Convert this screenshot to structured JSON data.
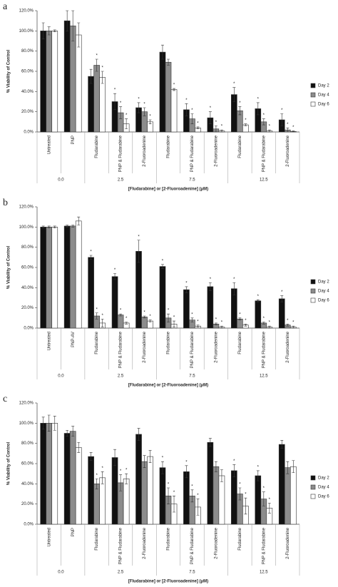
{
  "chart_data": [
    {
      "type": "bar",
      "panel": "a",
      "y_label": "% Viability of Control",
      "x_label": "[Fludarabine]  or [2-Fluoroadenine] (μM)",
      "categories": [
        "Untreated",
        "PNP",
        "Fludarabine",
        "PNP & Fludarabine",
        "2-Fluoroadenine",
        "Fludarabine",
        "PNP & Fludarabine",
        "2-Fluoroadenine",
        "Fludarabine",
        "PNP & Fludarabine",
        "2-Fluoroadenine"
      ],
      "groups": [
        {
          "label": "0.0",
          "count": 2
        },
        {
          "label": "2.5",
          "count": 3
        },
        {
          "label": "7.5",
          "count": 3
        },
        {
          "label": "12.5",
          "count": 3
        }
      ],
      "ylim": [
        0,
        120
      ],
      "yticks": [
        {
          "value": 0,
          "label": "0.0%"
        },
        {
          "value": 20,
          "label": "20.0%"
        },
        {
          "value": 40,
          "label": "40.0%"
        },
        {
          "value": 60,
          "label": "60.0%"
        },
        {
          "value": 80,
          "label": "80.0%"
        },
        {
          "value": 100,
          "label": "100.0%"
        },
        {
          "value": 120,
          "label": "120.0%"
        }
      ],
      "series": [
        {
          "name": "Day 2",
          "color": "#111111",
          "values": [
            100,
            110,
            55,
            30,
            24,
            79,
            22,
            14,
            37,
            23,
            12
          ],
          "errors": [
            8,
            10,
            7,
            8,
            5,
            7,
            6,
            6,
            7,
            6,
            6
          ],
          "annotations": [
            null,
            null,
            null,
            "*",
            "*",
            null,
            "*",
            "*",
            "*",
            "*",
            "*"
          ]
        },
        {
          "name": "Day 4",
          "color": "#8c8c8c",
          "values": [
            100,
            105,
            66,
            19,
            20,
            69,
            13,
            3,
            21,
            10,
            2
          ],
          "errors": [
            4,
            15,
            6,
            6,
            4,
            3,
            5,
            3,
            4,
            3,
            2
          ],
          "annotations": [
            null,
            null,
            "*",
            "*",
            "*",
            null,
            "*",
            "*",
            "*",
            "*",
            "*"
          ]
        },
        {
          "name": "Day 6",
          "color": "#ffffff",
          "values": [
            100,
            96,
            54,
            8,
            10,
            42,
            4,
            1,
            7,
            1,
            0.5
          ],
          "errors": [
            1,
            12,
            6,
            5,
            2,
            1,
            1,
            1,
            1,
            1,
            0.5
          ],
          "annotations": [
            null,
            null,
            "*",
            "*",
            "*",
            "*",
            "*",
            "*",
            "*",
            "*",
            "*"
          ]
        }
      ]
    },
    {
      "type": "bar",
      "panel": "b",
      "y_label": "% Viability of Control",
      "x_label": "[Fludarabine]  or [2-Fluoroadenine] (μM)",
      "categories": [
        "Untreated",
        "PNP-AV",
        "Fludarabine",
        "PNP & Fludarabine",
        "2-Fluoroadenine",
        "Fludarabine",
        "PNP & Fludarabine",
        "2-Fluoroadenine",
        "Fludarabine",
        "PNP & Fludarabine",
        "2-Fluoroadenine"
      ],
      "groups": [
        {
          "label": "0.0",
          "count": 2
        },
        {
          "label": "2.5",
          "count": 3
        },
        {
          "label": "7.5",
          "count": 3
        },
        {
          "label": "12.5",
          "count": 3
        }
      ],
      "ylim": [
        0,
        120
      ],
      "yticks": [
        {
          "value": 0,
          "label": "0.0%"
        },
        {
          "value": 20,
          "label": "20.0%"
        },
        {
          "value": 40,
          "label": "40.0%"
        },
        {
          "value": 60,
          "label": "60.0%"
        },
        {
          "value": 80,
          "label": "80.0%"
        },
        {
          "value": 100,
          "label": "100.0%"
        },
        {
          "value": 120,
          "label": "120.0%"
        }
      ],
      "series": [
        {
          "name": "Day 2",
          "color": "#111111",
          "values": [
            100,
            101,
            70,
            51,
            76,
            61,
            38,
            41,
            39,
            27,
            29
          ],
          "errors": [
            1,
            1,
            2,
            3,
            11,
            2,
            3,
            4,
            6,
            1,
            3
          ],
          "annotations": [
            null,
            null,
            "*",
            "*",
            "*",
            "*",
            "*",
            "*",
            "*",
            "*",
            "*"
          ]
        },
        {
          "name": "Day 4",
          "color": "#8c8c8c",
          "values": [
            100,
            101,
            12,
            13,
            11,
            10,
            8,
            4,
            9,
            5,
            3
          ],
          "errors": [
            1,
            1,
            3,
            1,
            1,
            4,
            2,
            1,
            1,
            1,
            1
          ],
          "annotations": [
            null,
            null,
            "*",
            "*",
            "*",
            "*",
            "*",
            "*",
            "*",
            "*",
            "*"
          ]
        },
        {
          "name": "Day 6",
          "color": "#ffffff",
          "values": [
            100,
            106,
            5,
            5,
            7,
            4,
            2,
            1,
            3,
            1,
            1
          ],
          "errors": [
            1,
            4,
            4,
            1,
            1,
            3,
            1,
            1,
            1,
            1,
            1
          ],
          "annotations": [
            null,
            null,
            "*",
            "*",
            "*",
            "*",
            "*",
            "*",
            "*",
            "*",
            "*"
          ]
        }
      ]
    },
    {
      "type": "bar",
      "panel": "c",
      "y_label": "% Viability of Control",
      "x_label": "[Fludarabine]  or [2-Fluoroadenine] (μM)",
      "categories": [
        "Untreated",
        "PNP",
        "Fludarabine",
        "PNP & Fludarabine",
        "2-Fluoroadenine",
        "Fludarabine",
        "PNP & Fludarabine",
        "2-Fluoroadenine",
        "Fludarabine",
        "PNP & Fludarabine",
        "2-Fluoroadenine"
      ],
      "groups": [
        {
          "label": "0.0",
          "count": 2
        },
        {
          "label": "2.5",
          "count": 3
        },
        {
          "label": "7.5",
          "count": 3
        },
        {
          "label": "12.5",
          "count": 3
        }
      ],
      "ylim": [
        0,
        120
      ],
      "yticks": [
        {
          "value": 0,
          "label": "0.0%"
        },
        {
          "value": 20,
          "label": "20.0%"
        },
        {
          "value": 40,
          "label": "40.0%"
        },
        {
          "value": 60,
          "label": "60.0%"
        },
        {
          "value": 80,
          "label": "80.0%"
        },
        {
          "value": 100,
          "label": "100.0%"
        },
        {
          "value": 120,
          "label": "120.0%"
        }
      ],
      "series": [
        {
          "name": "Day 2",
          "color": "#111111",
          "values": [
            100,
            90,
            67,
            66,
            89,
            56,
            52,
            81,
            53,
            48,
            79
          ],
          "errors": [
            6,
            3,
            4,
            8,
            6,
            6,
            6,
            4,
            6,
            5,
            4
          ],
          "annotations": [
            null,
            null,
            null,
            null,
            null,
            "*",
            "*",
            null,
            "*",
            "*",
            null
          ]
        },
        {
          "name": "Day 4",
          "color": "#8c8c8c",
          "values": [
            100,
            92,
            40,
            41,
            62,
            28,
            28,
            57,
            30,
            25,
            56
          ],
          "errors": [
            8,
            5,
            5,
            8,
            6,
            8,
            6,
            5,
            6,
            7,
            6
          ],
          "annotations": [
            null,
            null,
            "*",
            "*",
            null,
            "*",
            "*",
            null,
            "*",
            "*",
            null
          ]
        },
        {
          "name": "Day 6",
          "color": "#ffffff",
          "values": [
            100,
            76,
            46,
            45,
            67,
            20,
            17,
            48,
            18,
            16,
            57
          ],
          "errors": [
            7,
            5,
            6,
            5,
            6,
            8,
            8,
            6,
            8,
            5,
            6
          ],
          "annotations": [
            null,
            null,
            "*",
            "*",
            null,
            "*",
            "*",
            null,
            "*",
            "*",
            null
          ]
        }
      ]
    }
  ]
}
